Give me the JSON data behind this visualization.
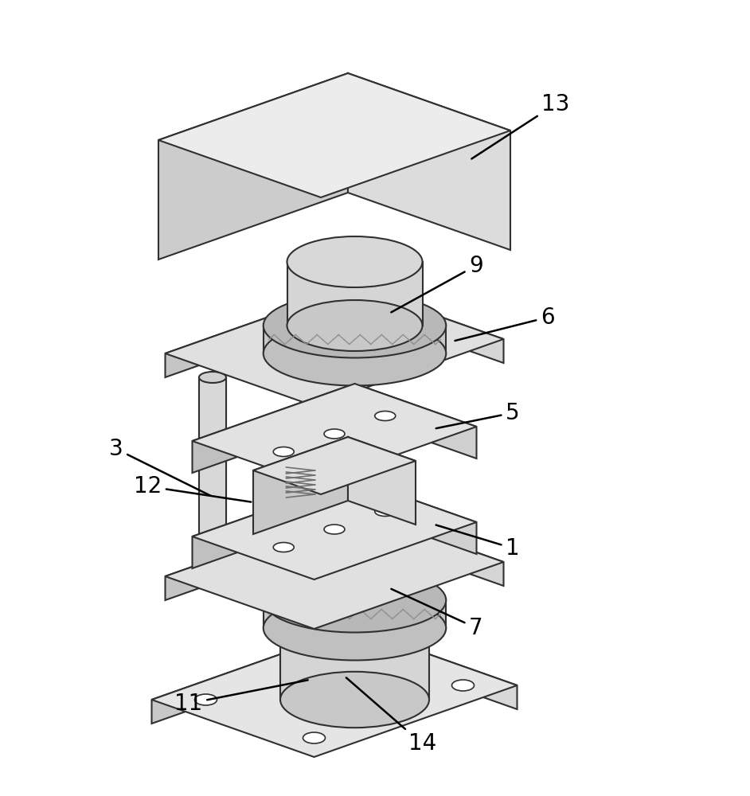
{
  "bg_color": "#ffffff",
  "line_color": "#303030",
  "line_width": 1.5,
  "fill_top": "#e8e8e8",
  "fill_side": "#d0d0d0",
  "fill_front": "#c0c0c0",
  "fill_ring": "#b8b8b8",
  "label_fontsize": 20,
  "labels": [
    "13",
    "9",
    "6",
    "5",
    "3",
    "12",
    "1",
    "7",
    "11",
    "14"
  ]
}
